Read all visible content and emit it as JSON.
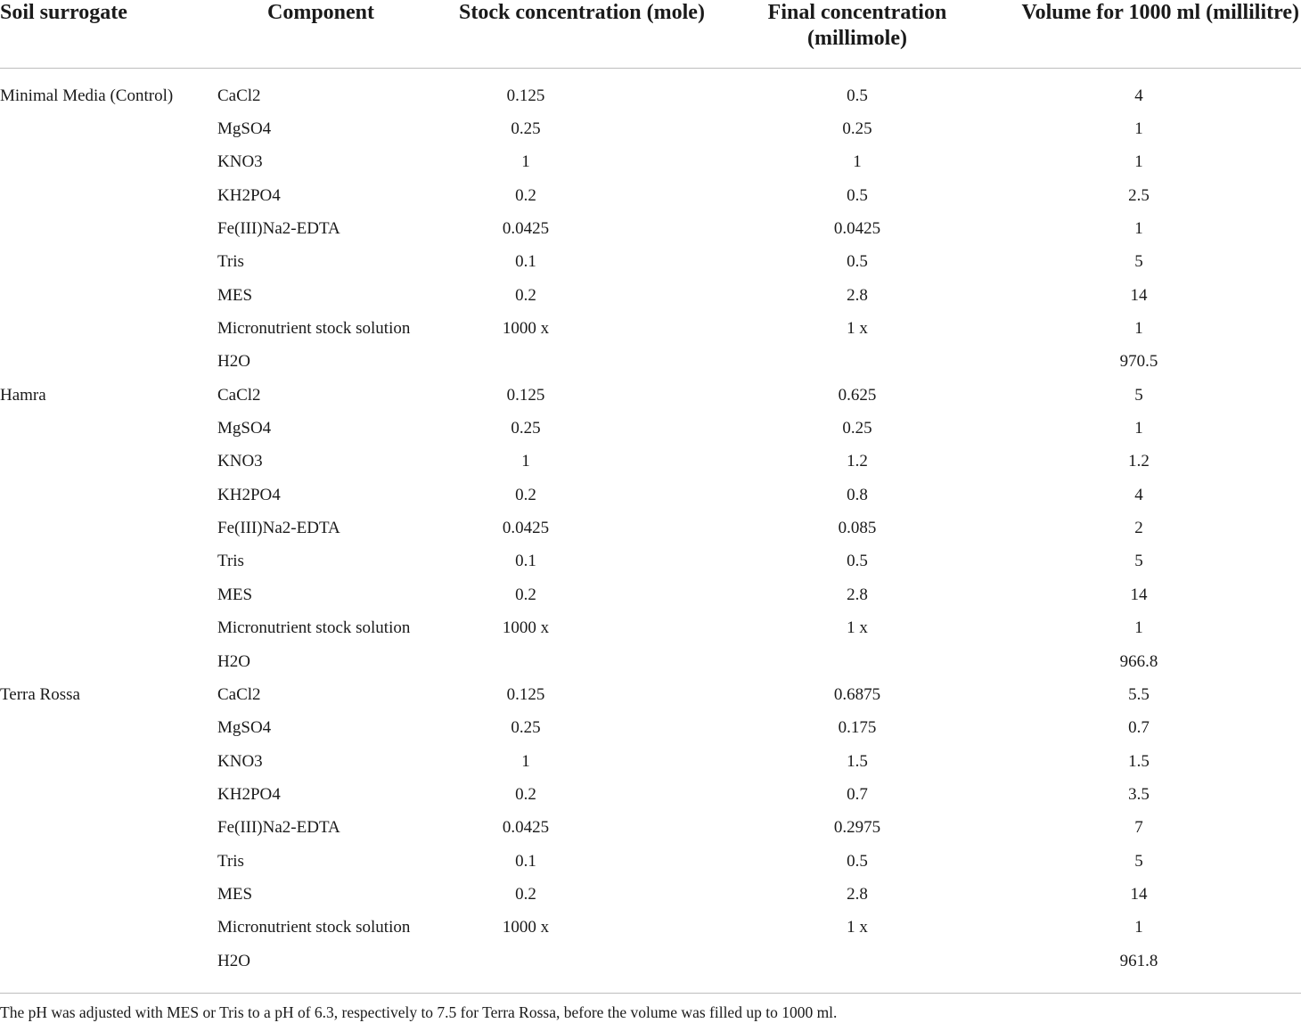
{
  "table": {
    "headers": {
      "soil": "Soil surrogate",
      "component": "Component",
      "stock": "Stock concentration (mole)",
      "final_line1": "Final concentration",
      "final_line2": "(millimole)",
      "volume": "Volume for 1000 ml (millilitre)"
    },
    "groups": [
      {
        "soil": "Minimal Media (Control)",
        "rows": [
          {
            "component": "CaCl2",
            "stock": "0.125",
            "final": "0.5",
            "volume": "4"
          },
          {
            "component": "MgSO4",
            "stock": "0.25",
            "final": "0.25",
            "volume": "1"
          },
          {
            "component": "KNO3",
            "stock": "1",
            "final": "1",
            "volume": "1"
          },
          {
            "component": "KH2PO4",
            "stock": "0.2",
            "final": "0.5",
            "volume": "2.5"
          },
          {
            "component": "Fe(III)Na2-EDTA",
            "stock": "0.0425",
            "final": "0.0425",
            "volume": "1"
          },
          {
            "component": "Tris",
            "stock": "0.1",
            "final": "0.5",
            "volume": "5"
          },
          {
            "component": "MES",
            "stock": "0.2",
            "final": "2.8",
            "volume": "14"
          },
          {
            "component": "Micronutrient stock solution",
            "stock": "1000 x",
            "final": "1 x",
            "volume": "1"
          },
          {
            "component": "H2O",
            "stock": "",
            "final": "",
            "volume": "970.5"
          }
        ]
      },
      {
        "soil": "Hamra",
        "rows": [
          {
            "component": "CaCl2",
            "stock": "0.125",
            "final": "0.625",
            "volume": "5"
          },
          {
            "component": "MgSO4",
            "stock": "0.25",
            "final": "0.25",
            "volume": "1"
          },
          {
            "component": "KNO3",
            "stock": "1",
            "final": "1.2",
            "volume": "1.2"
          },
          {
            "component": "KH2PO4",
            "stock": "0.2",
            "final": "0.8",
            "volume": "4"
          },
          {
            "component": "Fe(III)Na2-EDTA",
            "stock": "0.0425",
            "final": "0.085",
            "volume": "2"
          },
          {
            "component": "Tris",
            "stock": "0.1",
            "final": "0.5",
            "volume": "5"
          },
          {
            "component": "MES",
            "stock": "0.2",
            "final": "2.8",
            "volume": "14"
          },
          {
            "component": "Micronutrient stock solution",
            "stock": "1000 x",
            "final": "1 x",
            "volume": "1"
          },
          {
            "component": "H2O",
            "stock": "",
            "final": "",
            "volume": "966.8"
          }
        ]
      },
      {
        "soil": "Terra Rossa",
        "rows": [
          {
            "component": "CaCl2",
            "stock": "0.125",
            "final": "0.6875",
            "volume": "5.5"
          },
          {
            "component": "MgSO4",
            "stock": "0.25",
            "final": "0.175",
            "volume": "0.7"
          },
          {
            "component": "KNO3",
            "stock": "1",
            "final": "1.5",
            "volume": "1.5"
          },
          {
            "component": "KH2PO4",
            "stock": "0.2",
            "final": "0.7",
            "volume": "3.5"
          },
          {
            "component": "Fe(III)Na2-EDTA",
            "stock": "0.0425",
            "final": "0.2975",
            "volume": "7"
          },
          {
            "component": "Tris",
            "stock": "0.1",
            "final": "0.5",
            "volume": "5"
          },
          {
            "component": "MES",
            "stock": "0.2",
            "final": "2.8",
            "volume": "14"
          },
          {
            "component": "Micronutrient stock solution",
            "stock": "1000 x",
            "final": "1 x",
            "volume": "1"
          },
          {
            "component": "H2O",
            "stock": "",
            "final": "",
            "volume": "961.8"
          }
        ]
      }
    ],
    "footnote": "The pH was adjusted with MES or Tris to a pH of 6.3, respectively to 7.5 for Terra Rossa, before the volume was filled up to 1000 ml."
  }
}
